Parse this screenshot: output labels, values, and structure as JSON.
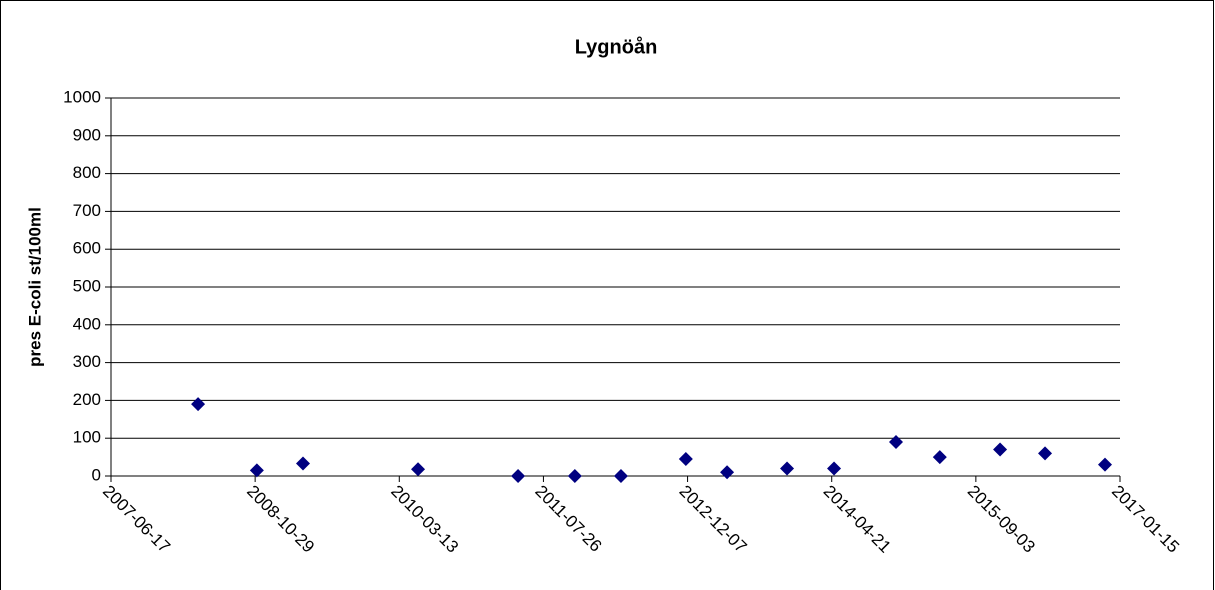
{
  "chart_data": {
    "type": "scatter",
    "title": "Lygnöån",
    "y_label": "pres E-coli st/100ml",
    "x": [
      "2008-04-14",
      "2008-11-04",
      "2009-04-13",
      "2010-05-17",
      "2011-04-29",
      "2011-11-12",
      "2012-04-20",
      "2012-12-01",
      "2013-04-23",
      "2013-11-17",
      "2014-04-29",
      "2014-11-30",
      "2015-05-01",
      "2015-11-26",
      "2016-04-30",
      "2016-11-24"
    ],
    "values": [
      190,
      15,
      33,
      18,
      0,
      0,
      0,
      45,
      10,
      20,
      20,
      90,
      50,
      70,
      60,
      30
    ],
    "color": "#000080",
    "xlim": [
      "2007-06-17",
      "2017-01-15"
    ],
    "xticks": [
      "2007-06-17",
      "2008-10-29",
      "2010-03-13",
      "2011-07-26",
      "2012-12-07",
      "2014-04-21",
      "2015-09-03",
      "2017-01-15"
    ],
    "ylim": [
      0,
      1000
    ],
    "yticks": [
      0,
      100,
      200,
      300,
      400,
      500,
      600,
      700,
      800,
      900,
      1000
    ],
    "grid": true
  }
}
